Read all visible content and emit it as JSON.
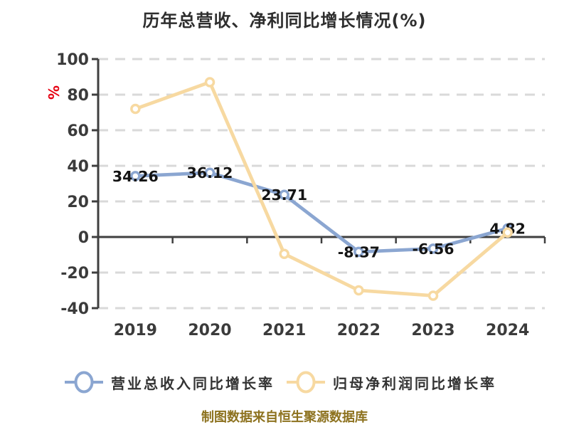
{
  "title": "历年总营收、净利同比增长情况(%)",
  "y_axis_unit_label": "%",
  "footer_credit": "制图数据来自恒生聚源数据库",
  "colors": {
    "revenue_line": "#8ba6d1",
    "net_profit_line": "#f7d9a1",
    "axis": "#3f3f3f",
    "gridline": "#d9d9d9",
    "tick_label": "#3b3b3b",
    "data_label": "#141414",
    "unit_label": "#e60012",
    "title_text": "#2e2e2e",
    "legend_text": "#333333",
    "footer_text": "#8d721f",
    "marker_fill": "#ffffff"
  },
  "legend": {
    "items": [
      {
        "label": "营业总收入同比增长率",
        "color": "#8ba6d1"
      },
      {
        "label": "归母净利润同比增长率",
        "color": "#f7d9a1"
      }
    ]
  },
  "chart_data": {
    "type": "line",
    "title": "历年总营收、净利同比增长情况(%)",
    "categories": [
      "2019",
      "2020",
      "2021",
      "2022",
      "2023",
      "2024"
    ],
    "series": [
      {
        "name": "营业总收入同比增长率",
        "color": "#8ba6d1",
        "values": [
          34.26,
          36.12,
          23.71,
          -8.37,
          -6.56,
          4.82
        ],
        "labels": [
          "34.26",
          "36.12",
          "23.71",
          "-8.37",
          "-6.56",
          "4.82"
        ],
        "show_point_labels": true
      },
      {
        "name": "归母净利润同比增长率",
        "color": "#f7d9a1",
        "values": [
          72,
          87,
          -9.5,
          -30,
          -33,
          2.5
        ],
        "labels": [],
        "show_point_labels": false,
        "values_estimated_from_gridlines": true
      }
    ],
    "xlabel": "",
    "ylabel": "%",
    "ylim": [
      -40,
      100
    ],
    "y_ticks": [
      100,
      80,
      60,
      40,
      20,
      0,
      -20,
      -40
    ],
    "grid": "horizontal-dashed",
    "legend_position": "bottom"
  }
}
